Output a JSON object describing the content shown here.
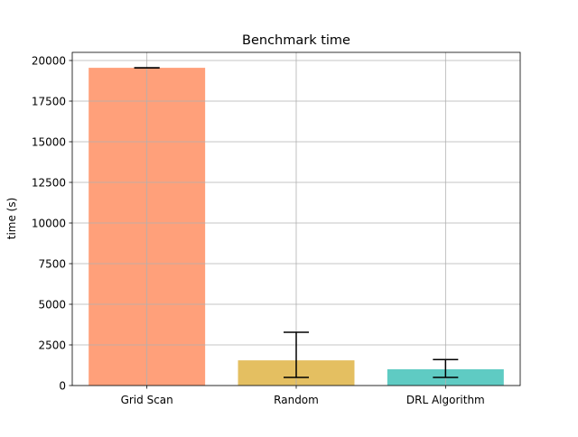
{
  "chart_data": {
    "type": "bar",
    "title": "Benchmark time",
    "xlabel": "",
    "ylabel": "time (s)",
    "categories": [
      "Grid Scan",
      "Random",
      "DRL Algorithm"
    ],
    "values": [
      19550,
      1550,
      1000
    ],
    "error_low": [
      19550,
      500,
      500
    ],
    "error_high": [
      19550,
      3280,
      1600
    ],
    "colors": [
      "#ffa07a",
      "#e4bf61",
      "#5fcbc3"
    ],
    "ylim": [
      0,
      20500
    ],
    "yticks": [
      0,
      2500,
      5000,
      7500,
      10000,
      12500,
      15000,
      17500,
      20000
    ],
    "ytick_labels": [
      "0",
      "2500",
      "5000",
      "7500",
      "10000",
      "12500",
      "15000",
      "17500",
      "20000"
    ],
    "grid": true,
    "legend": "none"
  }
}
